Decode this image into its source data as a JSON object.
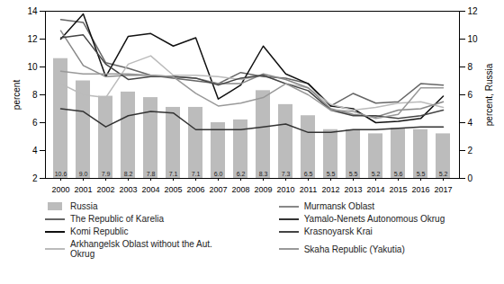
{
  "chart_data": {
    "type": "bar",
    "categories": [
      "2000",
      "2001",
      "2002",
      "2003",
      "2004",
      "2005",
      "2006",
      "2007",
      "2008",
      "2009",
      "2010",
      "2011",
      "2012",
      "2013",
      "2014",
      "2015",
      "2016",
      "2017"
    ],
    "series": [
      {
        "name": "Russia",
        "type": "bar",
        "color": "#bcbcbc",
        "data_labels": true,
        "values": [
          10.6,
          9.0,
          7.9,
          8.2,
          7.8,
          7.1,
          7.1,
          6.0,
          6.2,
          8.3,
          7.3,
          6.5,
          5.5,
          5.5,
          5.2,
          5.6,
          5.5,
          5.2
        ],
        "value_labels": [
          "10.6",
          "9.0",
          "7.9",
          "8.2",
          "7.8",
          "7.1",
          "7.1",
          "6.0",
          "6.2",
          "8.3",
          "7.3",
          "6.5",
          "5.5",
          "5.5",
          "5.2",
          "5.6",
          "5.5",
          "5.2"
        ]
      },
      {
        "name": "The Republic of Karelia",
        "type": "line",
        "color": "#666666",
        "values": [
          13.4,
          13.2,
          10.3,
          9.9,
          9.4,
          9.2,
          9.0,
          8.8,
          9.6,
          9.3,
          9.2,
          8.8,
          7.2,
          8.1,
          7.4,
          7.5,
          8.8,
          8.7
        ]
      },
      {
        "name": "Komi Republic",
        "type": "line",
        "color": "#111111",
        "values": [
          12.0,
          13.8,
          9.3,
          12.2,
          12.4,
          11.5,
          12.1,
          7.7,
          8.7,
          11.5,
          9.5,
          8.8,
          7.2,
          7.0,
          6.0,
          6.1,
          6.3,
          7.9
        ]
      },
      {
        "name": "Arkhangelsk Oblast without the Aut.\nOkrug",
        "type": "line",
        "color": "#bbbbbb",
        "values": [
          8.8,
          8.0,
          7.8,
          10.2,
          10.8,
          9.4,
          9.4,
          9.3,
          9.1,
          9.4,
          8.8,
          8.5,
          7.3,
          6.9,
          7.1,
          7.4,
          7.5,
          7.1
        ]
      },
      {
        "name": "Murmansk Oblast",
        "type": "line",
        "color": "#888888",
        "values": [
          12.6,
          10.1,
          9.3,
          9.4,
          9.4,
          9.3,
          9.2,
          8.8,
          8.8,
          9.5,
          9.1,
          8.5,
          7.0,
          6.6,
          6.4,
          6.9,
          7.0,
          7.5
        ]
      },
      {
        "name": "Yamalo-Nenets Autonomous Okrug",
        "type": "line",
        "color": "#333333",
        "values": [
          7.0,
          6.8,
          5.7,
          6.5,
          6.8,
          6.7,
          5.5,
          5.5,
          5.5,
          5.7,
          5.9,
          5.3,
          5.3,
          5.5,
          5.5,
          5.6,
          5.7,
          5.7
        ]
      },
      {
        "name": "Krasnoyarsk Krai",
        "type": "line",
        "color": "#444444",
        "values": [
          12.1,
          12.3,
          10.2,
          9.1,
          9.3,
          9.3,
          9.2,
          8.7,
          9.2,
          9.4,
          8.8,
          8.3,
          6.9,
          6.5,
          6.5,
          6.3,
          6.5,
          6.9
        ]
      },
      {
        "name": "Skaha Republic (Yakutia)",
        "type": "line",
        "color": "#999999",
        "values": [
          9.7,
          9.5,
          9.5,
          9.5,
          9.4,
          9.3,
          8.1,
          7.2,
          7.4,
          7.8,
          8.8,
          8.0,
          6.9,
          6.8,
          6.3,
          6.6,
          8.5,
          8.5
        ]
      }
    ],
    "ylabel": "percent",
    "y2label": "percent, Russia",
    "ylim": [
      2,
      14
    ],
    "yticks": [
      2,
      4,
      6,
      8,
      10,
      12,
      14
    ],
    "y2lim": [
      0,
      12
    ],
    "y2ticks": [
      0,
      2,
      4,
      6,
      8,
      10,
      12
    ],
    "legend": "bottom",
    "grid": false
  }
}
